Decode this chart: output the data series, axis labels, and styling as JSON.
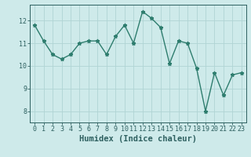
{
  "x": [
    0,
    1,
    2,
    3,
    4,
    5,
    6,
    7,
    8,
    9,
    10,
    11,
    12,
    13,
    14,
    15,
    16,
    17,
    18,
    19,
    20,
    21,
    22,
    23
  ],
  "y": [
    11.8,
    11.1,
    10.5,
    10.3,
    10.5,
    11.0,
    11.1,
    11.1,
    10.5,
    11.3,
    11.8,
    11.0,
    12.4,
    12.1,
    11.7,
    10.1,
    11.1,
    11.0,
    9.9,
    8.0,
    9.7,
    8.7,
    9.6,
    9.7
  ],
  "line_color": "#2e7d6e",
  "marker": "*",
  "marker_color": "#2e7d6e",
  "bg_color": "#ceeaea",
  "grid_color": "#b0d4d4",
  "xlabel": "Humidex (Indice chaleur)",
  "xlim": [
    -0.5,
    23.5
  ],
  "ylim": [
    7.5,
    12.7
  ],
  "yticks": [
    8,
    9,
    10,
    11,
    12
  ],
  "xticks": [
    0,
    1,
    2,
    3,
    4,
    5,
    6,
    7,
    8,
    9,
    10,
    11,
    12,
    13,
    14,
    15,
    16,
    17,
    18,
    19,
    20,
    21,
    22,
    23
  ],
  "tick_color": "#2e6060",
  "label_color": "#2e6060",
  "spine_color": "#2e6060",
  "xlabel_fontsize": 7.5,
  "tick_fontsize": 6,
  "line_width": 1.0,
  "marker_size": 3.5
}
